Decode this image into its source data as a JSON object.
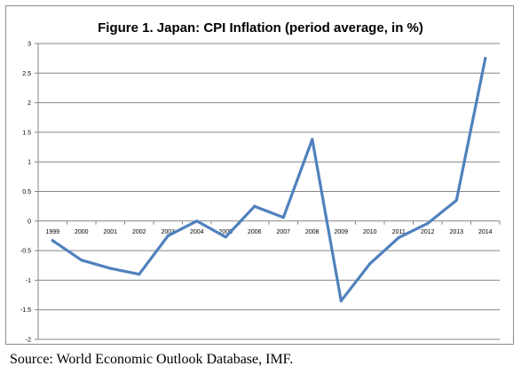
{
  "chart_data": {
    "type": "line",
    "title": "Figure 1. Japan: CPI Inflation (period average, in %)",
    "xlabel": "",
    "ylabel": "",
    "categories": [
      "1999",
      "2000",
      "2001",
      "2002",
      "2003",
      "2004",
      "2005",
      "2006",
      "2007",
      "2008",
      "2009",
      "2010",
      "2011",
      "2012",
      "2013",
      "2014"
    ],
    "series": [
      {
        "values": [
          -0.33,
          -0.66,
          -0.8,
          -0.9,
          -0.25,
          0.0,
          -0.27,
          0.25,
          0.06,
          1.38,
          -1.35,
          -0.72,
          -0.28,
          -0.04,
          0.35,
          2.75
        ]
      }
    ],
    "ylim": [
      -2,
      3
    ],
    "yticks": [
      -2,
      -1.5,
      -1,
      -0.5,
      0,
      0.5,
      1,
      1.5,
      2,
      2.5,
      3
    ],
    "ytick_labels": [
      "-2",
      "-1.5",
      "-1",
      "-0.5",
      "0",
      "0.5",
      "1",
      "1.5",
      "2",
      "2.5",
      "3"
    ],
    "grid": true,
    "legend": "none",
    "colors": {
      "line": "#4f81bd",
      "grid": "#868686",
      "axis": "#868686"
    }
  },
  "source": "Source: World Economic Outlook Database, IMF."
}
